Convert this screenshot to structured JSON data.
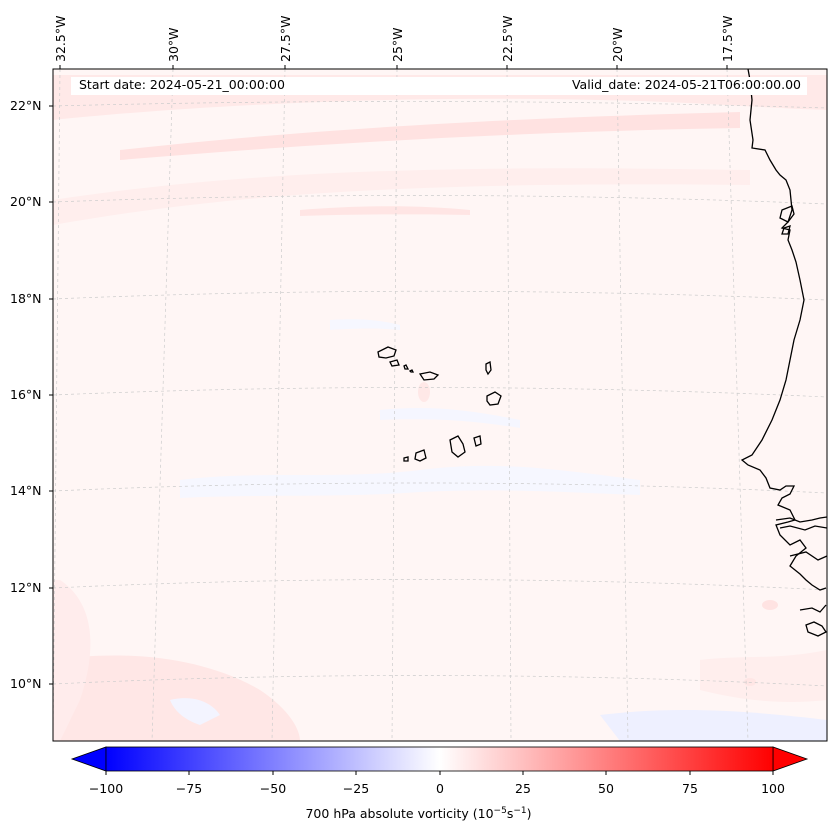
{
  "header": {
    "start_date": "Start date: 2024-05-21_00:00:00",
    "valid_date": "Valid_date: 2024-05-21T06:00:00.00"
  },
  "lon_labels": [
    "32.5°W",
    "30°W",
    "27.5°W",
    "25°W",
    "22.5°W",
    "20°W",
    "17.5°W"
  ],
  "lat_labels": [
    "22°N",
    "20°N",
    "18°N",
    "16°N",
    "14°N",
    "12°N",
    "10°N"
  ],
  "colorbar": {
    "label_prefix": "700 hPa absolute vorticity (10",
    "label_exp1": "−5",
    "label_mid": "s",
    "label_exp2": "−1",
    "label_suffix": ")",
    "ticks": [
      "−100",
      "−75",
      "−50",
      "−25",
      "0",
      "25",
      "50",
      "75",
      "100"
    ],
    "vmin": -100,
    "vmax": 100,
    "low_color": "#0000ff",
    "zero_color": "#ffffff",
    "high_color": "#ff0000"
  },
  "map": {
    "projection": "lambert-conformal",
    "lon_range": [
      "34°W",
      "15°W"
    ],
    "lat_range": [
      "9°N",
      "23°N"
    ],
    "field": "700 hPa absolute vorticity",
    "coastline_color": "#000000",
    "gridlines": true
  }
}
